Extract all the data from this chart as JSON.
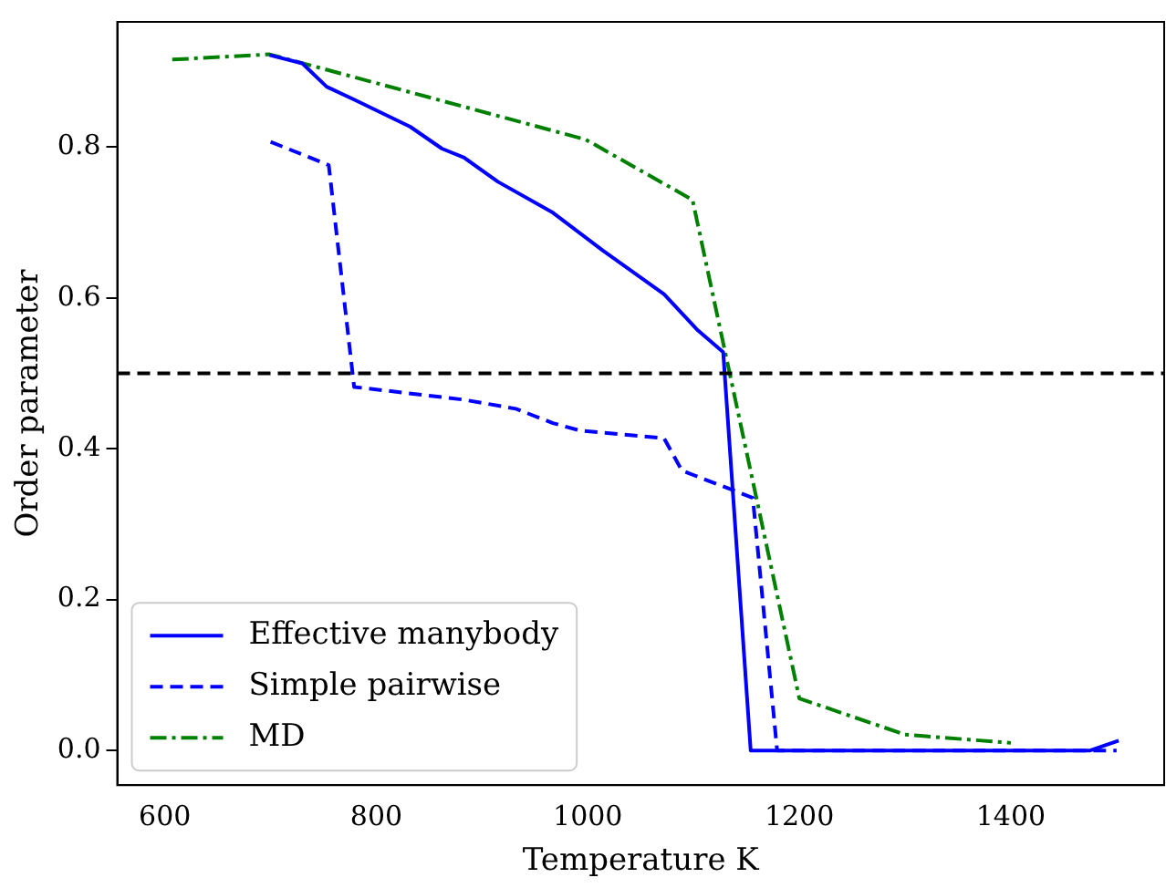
{
  "chart_data": {
    "type": "line",
    "xlabel": "Temperature K",
    "ylabel": "Order parameter",
    "xlim": [
      555,
      1545
    ],
    "xticks": [
      600,
      800,
      1000,
      1200,
      1400
    ],
    "ylim": [
      -0.046,
      0.966
    ],
    "yticks": [
      {
        "value": 0,
        "label": "0.0"
      },
      0.2,
      0.4,
      0.6,
      0.8
    ],
    "grid": false,
    "legend": "bottom left",
    "marker": "none",
    "ref_lines": [
      {
        "axis": "y",
        "value": 0.5,
        "color": "#000000",
        "line_style": "dashed"
      }
    ],
    "series": [
      {
        "name": "Effective manybody",
        "color": "#0000ff",
        "line_style": "solid",
        "x": [
          699,
          730,
          753,
          779,
          832,
          862,
          883,
          915,
          967,
          1014,
          1072,
          1104,
          1128,
          1154,
          1475,
          1502
        ],
        "values": [
          0.922,
          0.911,
          0.88,
          0.863,
          0.827,
          0.798,
          0.786,
          0.754,
          0.713,
          0.663,
          0.605,
          0.557,
          0.528,
          0,
          0,
          0.013
        ]
      },
      {
        "name": "Simple pairwise",
        "color": "#0000ff",
        "line_style": "dashed",
        "x": [
          700,
          755,
          779,
          883,
          932,
          967,
          993,
          1072,
          1089,
          1156,
          1179,
          1500
        ],
        "values": [
          0.807,
          0.776,
          0.482,
          0.465,
          0.453,
          0.434,
          0.424,
          0.414,
          0.371,
          0.335,
          0,
          0
        ]
      },
      {
        "name": "MD",
        "color": "#008000",
        "line_style": "dashdot",
        "x": [
          607,
          699,
          998,
          1099,
          1200,
          1300,
          1400
        ],
        "values": [
          0.916,
          0.923,
          0.81,
          0.73,
          0.069,
          0.021,
          0.01
        ]
      }
    ]
  }
}
